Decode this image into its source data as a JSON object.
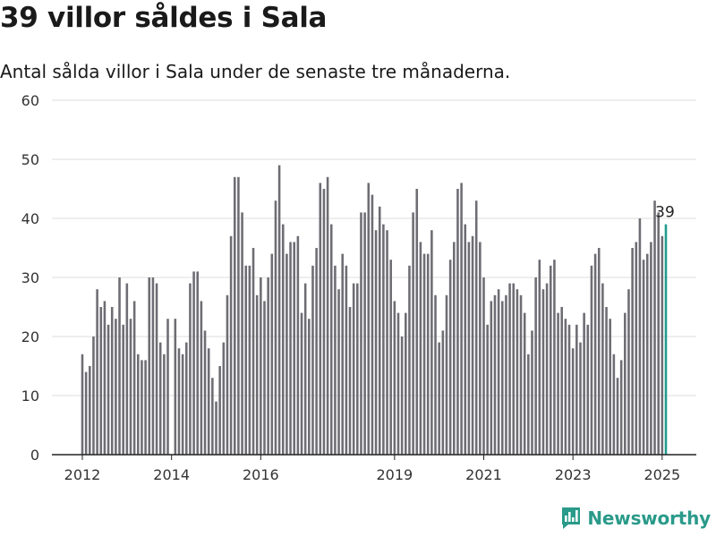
{
  "title": "39 villor såldes i Sala",
  "subtitle": "Antal sålda villor i Sala under de senaste tre månaderna.",
  "brand": {
    "name": "Newsworthy",
    "icon": "bar-chart-logo-icon",
    "color": "#2a9a8a"
  },
  "colors": {
    "bars": "#6e6d74",
    "highlight": "#1f9b8b",
    "grid": "#dcdcdc",
    "axis": "#222222"
  },
  "chart_data": {
    "type": "bar",
    "x_start": "2012-01",
    "x_end": "2025-02",
    "xticks": [
      "2012",
      "2014",
      "2016",
      "2019",
      "2021",
      "2023",
      "2025"
    ],
    "ylim": [
      0,
      60
    ],
    "yticks": [
      0,
      10,
      20,
      30,
      40,
      50,
      60
    ],
    "grid": true,
    "values": [
      17,
      14,
      15,
      20,
      28,
      25,
      26,
      22,
      25,
      23,
      30,
      22,
      29,
      23,
      26,
      17,
      16,
      16,
      30,
      30,
      29,
      19,
      17,
      23,
      0,
      23,
      18,
      17,
      19,
      29,
      31,
      31,
      26,
      21,
      18,
      13,
      9,
      15,
      19,
      27,
      37,
      47,
      47,
      41,
      32,
      32,
      35,
      27,
      30,
      26,
      30,
      34,
      43,
      49,
      39,
      34,
      36,
      36,
      37,
      24,
      29,
      23,
      32,
      35,
      46,
      45,
      47,
      39,
      32,
      28,
      34,
      32,
      25,
      29,
      29,
      41,
      41,
      46,
      44,
      38,
      42,
      39,
      38,
      33,
      26,
      24,
      20,
      24,
      32,
      41,
      45,
      36,
      34,
      34,
      38,
      27,
      19,
      21,
      27,
      33,
      36,
      45,
      46,
      39,
      36,
      37,
      43,
      36,
      30,
      22,
      26,
      27,
      28,
      26,
      27,
      29,
      29,
      28,
      27,
      24,
      17,
      21,
      30,
      33,
      28,
      29,
      32,
      33,
      24,
      25,
      23,
      22,
      18,
      22,
      19,
      24,
      22,
      32,
      34,
      35,
      29,
      25,
      23,
      17,
      13,
      16,
      24,
      28,
      35,
      36,
      40,
      33,
      34,
      36,
      43,
      41,
      37,
      39
    ],
    "highlight_label": "39"
  }
}
